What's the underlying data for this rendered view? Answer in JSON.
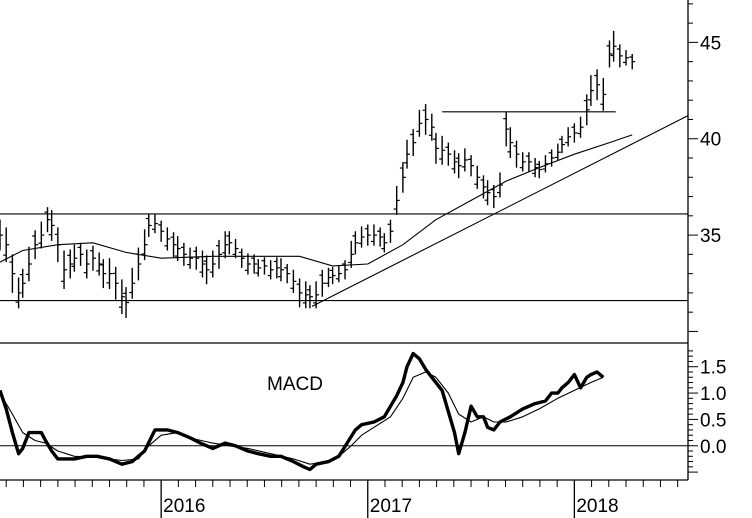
{
  "chart_data": [
    {
      "type": "ohlc",
      "panel": "price",
      "yticks": [
        "45",
        "40",
        "35"
      ],
      "ytick_values": [
        45,
        40,
        35
      ],
      "ylim": [
        29.4,
        47.2
      ],
      "xlim": [
        2015.22,
        2018.55
      ],
      "xticks": [
        "2016",
        "2017",
        "2018"
      ],
      "xtick_values": [
        2016.0,
        2017.0,
        2018.0
      ],
      "bars": [
        [
          2015.22,
          35,
          1.6
        ],
        [
          2015.25,
          34.5,
          1.8
        ],
        [
          2015.28,
          33,
          2
        ],
        [
          2015.31,
          32,
          1.6
        ],
        [
          2015.33,
          32.5,
          1.5
        ],
        [
          2015.36,
          33.5,
          1.8
        ],
        [
          2015.39,
          34.5,
          1.5
        ],
        [
          2015.42,
          35,
          1.4
        ],
        [
          2015.45,
          35.8,
          1.3
        ],
        [
          2015.47,
          35.5,
          1.6
        ],
        [
          2015.5,
          34.5,
          1.8
        ],
        [
          2015.53,
          33.2,
          2
        ],
        [
          2015.56,
          33.5,
          1.5
        ],
        [
          2015.58,
          33.8,
          1.4
        ],
        [
          2015.61,
          34,
          1.2
        ],
        [
          2015.64,
          33.5,
          1.5
        ],
        [
          2015.67,
          33.8,
          1.3
        ],
        [
          2015.7,
          33.5,
          1.2
        ],
        [
          2015.72,
          33,
          1.5
        ],
        [
          2015.75,
          33,
          1.6
        ],
        [
          2015.78,
          32.5,
          1.7
        ],
        [
          2015.81,
          31.8,
          1.8
        ],
        [
          2015.83,
          31.5,
          1.6
        ],
        [
          2015.86,
          32.5,
          1.6
        ],
        [
          2015.89,
          33.5,
          1.7
        ],
        [
          2015.92,
          34.5,
          1.6
        ],
        [
          2015.94,
          35.5,
          1.2
        ],
        [
          2015.97,
          35.6,
          1
        ],
        [
          2016.0,
          35.2,
          1.1
        ],
        [
          2016.03,
          34.8,
          1.2
        ],
        [
          2016.06,
          34.5,
          1.3
        ],
        [
          2016.08,
          34.3,
          1.3
        ],
        [
          2016.11,
          34,
          1.2
        ],
        [
          2016.14,
          33.8,
          1.1
        ],
        [
          2016.17,
          33.8,
          1.2
        ],
        [
          2016.2,
          33.5,
          1.4
        ],
        [
          2016.22,
          33.2,
          1.5
        ],
        [
          2016.25,
          33.5,
          1.4
        ],
        [
          2016.28,
          34,
          1.5
        ],
        [
          2016.31,
          34.5,
          1.4
        ],
        [
          2016.33,
          34.6,
          1.2
        ],
        [
          2016.36,
          34.3,
          1
        ],
        [
          2016.39,
          33.8,
          1
        ],
        [
          2016.42,
          33.5,
          1.1
        ],
        [
          2016.45,
          33.5,
          1
        ],
        [
          2016.47,
          33.3,
          0.9
        ],
        [
          2016.5,
          33.4,
          0.9
        ],
        [
          2016.53,
          33.2,
          1
        ],
        [
          2016.56,
          33.3,
          1.1
        ],
        [
          2016.58,
          33.2,
          1.2
        ],
        [
          2016.61,
          33,
          1
        ],
        [
          2016.64,
          32.6,
          1.2
        ],
        [
          2016.67,
          32,
          1.5
        ],
        [
          2016.7,
          31.9,
          1.4
        ],
        [
          2016.72,
          31.8,
          1.2
        ],
        [
          2016.75,
          31.9,
          1.4
        ],
        [
          2016.78,
          32.5,
          1.4
        ],
        [
          2016.81,
          32.8,
          1
        ],
        [
          2016.83,
          32.9,
          0.9
        ],
        [
          2016.86,
          33,
          0.9
        ],
        [
          2016.89,
          33.2,
          1
        ],
        [
          2016.92,
          34,
          1.4
        ],
        [
          2016.94,
          34.6,
          1.2
        ],
        [
          2016.97,
          34.9,
          1.1
        ],
        [
          2017.0,
          35,
          1.1
        ],
        [
          2017.03,
          35,
          1.1
        ],
        [
          2017.06,
          34.9,
          1
        ],
        [
          2017.08,
          34.6,
          1
        ],
        [
          2017.11,
          35.2,
          1.2
        ],
        [
          2017.14,
          36.8,
          1.5
        ],
        [
          2017.17,
          38,
          1.6
        ],
        [
          2017.19,
          39.2,
          1.5
        ],
        [
          2017.22,
          39.8,
          1.4
        ],
        [
          2017.25,
          40.8,
          1.4
        ],
        [
          2017.28,
          41,
          1.6
        ],
        [
          2017.31,
          40.6,
          1.4
        ],
        [
          2017.33,
          39.5,
          1.6
        ],
        [
          2017.36,
          39.4,
          1.5
        ],
        [
          2017.39,
          39.2,
          1.2
        ],
        [
          2017.42,
          38.8,
          1.2
        ],
        [
          2017.44,
          38.6,
          1.3
        ],
        [
          2017.47,
          38.9,
          1.2
        ],
        [
          2017.5,
          38.6,
          1.1
        ],
        [
          2017.53,
          38,
          1.2
        ],
        [
          2017.56,
          37.5,
          1.2
        ],
        [
          2017.58,
          37.2,
          1.3
        ],
        [
          2017.61,
          37,
          1.2
        ],
        [
          2017.64,
          37.6,
          1.3
        ],
        [
          2017.67,
          40.5,
          1.8
        ],
        [
          2017.69,
          39.8,
          1.6
        ],
        [
          2017.72,
          39.2,
          1.4
        ],
        [
          2017.75,
          38.8,
          1
        ],
        [
          2017.78,
          38.8,
          1
        ],
        [
          2017.81,
          38.5,
          1
        ],
        [
          2017.83,
          38.4,
          0.9
        ],
        [
          2017.86,
          38.7,
          0.9
        ],
        [
          2017.89,
          39,
          0.9
        ],
        [
          2017.92,
          39.3,
          0.9
        ],
        [
          2017.94,
          39.7,
          0.9
        ],
        [
          2017.97,
          40.1,
          1
        ],
        [
          2018.0,
          40.3,
          1
        ],
        [
          2018.03,
          40.6,
          1.1
        ],
        [
          2018.06,
          41.5,
          1.6
        ],
        [
          2018.08,
          42.5,
          1.6
        ],
        [
          2018.11,
          42.8,
          1.6
        ],
        [
          2018.14,
          42.3,
          1.7
        ],
        [
          2018.17,
          44.4,
          1.4
        ],
        [
          2018.19,
          44.8,
          1.6
        ],
        [
          2018.22,
          44.3,
          1.2
        ],
        [
          2018.25,
          44.2,
          0.8
        ],
        [
          2018.28,
          44,
          0.8
        ]
      ],
      "moving_average": [
        [
          2015.22,
          33.6
        ],
        [
          2015.33,
          34.2
        ],
        [
          2015.5,
          34.5
        ],
        [
          2015.67,
          34.6
        ],
        [
          2015.83,
          34.1
        ],
        [
          2016.0,
          33.8
        ],
        [
          2016.25,
          33.9
        ],
        [
          2016.5,
          33.9
        ],
        [
          2016.67,
          33.9
        ],
        [
          2016.83,
          33.4
        ],
        [
          2017.0,
          33.5
        ],
        [
          2017.17,
          34.5
        ],
        [
          2017.33,
          35.8
        ],
        [
          2017.5,
          36.8
        ],
        [
          2017.67,
          37.8
        ],
        [
          2017.83,
          38.5
        ],
        [
          2018.0,
          39.2
        ],
        [
          2018.17,
          39.8
        ],
        [
          2018.28,
          40.2
        ]
      ],
      "trendlines": [
        {
          "points": [
            [
              2015.22,
              36.1
            ],
            [
              2018.55,
              36.1
            ]
          ]
        },
        {
          "points": [
            [
              2015.22,
              31.6
            ],
            [
              2018.55,
              31.6
            ]
          ]
        },
        {
          "points": [
            [
              2017.36,
              41.4
            ],
            [
              2018.2,
              41.4
            ]
          ]
        },
        {
          "points": [
            [
              2016.73,
              31.3
            ],
            [
              2018.55,
              41.2
            ]
          ]
        }
      ]
    },
    {
      "type": "line",
      "panel": "indicator",
      "label": "MACD",
      "yticks": [
        "1.5",
        "1.0",
        "0.5",
        "0.0"
      ],
      "ytick_values": [
        1.5,
        1.0,
        0.5,
        0.0
      ],
      "ylim": [
        -0.65,
        1.95
      ],
      "zero_line": 0.0,
      "series": [
        {
          "role": "macd",
          "values": [
            [
              2015.22,
              1.05
            ],
            [
              2015.25,
              0.7
            ],
            [
              2015.28,
              0.25
            ],
            [
              2015.31,
              -0.15
            ],
            [
              2015.33,
              -0.05
            ],
            [
              2015.36,
              0.25
            ],
            [
              2015.39,
              0.25
            ],
            [
              2015.42,
              0.25
            ],
            [
              2015.44,
              0.1
            ],
            [
              2015.47,
              -0.1
            ],
            [
              2015.5,
              -0.25
            ],
            [
              2015.53,
              -0.25
            ],
            [
              2015.58,
              -0.25
            ],
            [
              2015.64,
              -0.2
            ],
            [
              2015.69,
              -0.2
            ],
            [
              2015.75,
              -0.25
            ],
            [
              2015.81,
              -0.35
            ],
            [
              2015.86,
              -0.3
            ],
            [
              2015.92,
              -0.1
            ],
            [
              2015.97,
              0.3
            ],
            [
              2016.03,
              0.3
            ],
            [
              2016.08,
              0.25
            ],
            [
              2016.14,
              0.15
            ],
            [
              2016.19,
              0.05
            ],
            [
              2016.25,
              -0.05
            ],
            [
              2016.31,
              0.05
            ],
            [
              2016.36,
              0.0
            ],
            [
              2016.42,
              -0.1
            ],
            [
              2016.47,
              -0.15
            ],
            [
              2016.53,
              -0.2
            ],
            [
              2016.58,
              -0.2
            ],
            [
              2016.64,
              -0.3
            ],
            [
              2016.69,
              -0.4
            ],
            [
              2016.72,
              -0.45
            ],
            [
              2016.75,
              -0.35
            ],
            [
              2016.81,
              -0.3
            ],
            [
              2016.86,
              -0.2
            ],
            [
              2016.9,
              0.05
            ],
            [
              2016.94,
              0.3
            ],
            [
              2016.97,
              0.4
            ],
            [
              2017.03,
              0.45
            ],
            [
              2017.08,
              0.55
            ],
            [
              2017.11,
              0.75
            ],
            [
              2017.14,
              0.95
            ],
            [
              2017.17,
              1.2
            ],
            [
              2017.19,
              1.5
            ],
            [
              2017.22,
              1.75
            ],
            [
              2017.25,
              1.65
            ],
            [
              2017.28,
              1.45
            ],
            [
              2017.31,
              1.3
            ],
            [
              2017.36,
              1.05
            ],
            [
              2017.39,
              0.65
            ],
            [
              2017.42,
              0.25
            ],
            [
              2017.44,
              -0.15
            ],
            [
              2017.47,
              0.25
            ],
            [
              2017.5,
              0.75
            ],
            [
              2017.53,
              0.55
            ],
            [
              2017.56,
              0.55
            ],
            [
              2017.58,
              0.35
            ],
            [
              2017.61,
              0.3
            ],
            [
              2017.64,
              0.45
            ],
            [
              2017.69,
              0.55
            ],
            [
              2017.75,
              0.7
            ],
            [
              2017.81,
              0.8
            ],
            [
              2017.86,
              0.85
            ],
            [
              2017.89,
              1.0
            ],
            [
              2017.92,
              1.0
            ],
            [
              2017.94,
              1.1
            ],
            [
              2017.97,
              1.2
            ],
            [
              2018.0,
              1.35
            ],
            [
              2018.03,
              1.1
            ],
            [
              2018.06,
              1.3
            ],
            [
              2018.08,
              1.35
            ],
            [
              2018.11,
              1.4
            ],
            [
              2018.14,
              1.3
            ]
          ]
        },
        {
          "role": "signal",
          "values": [
            [
              2015.22,
              1.0
            ],
            [
              2015.28,
              0.6
            ],
            [
              2015.33,
              0.25
            ],
            [
              2015.39,
              0.1
            ],
            [
              2015.44,
              0.05
            ],
            [
              2015.5,
              -0.1
            ],
            [
              2015.58,
              -0.2
            ],
            [
              2015.69,
              -0.22
            ],
            [
              2015.81,
              -0.28
            ],
            [
              2015.89,
              -0.25
            ],
            [
              2015.94,
              0.0
            ],
            [
              2016.0,
              0.2
            ],
            [
              2016.08,
              0.25
            ],
            [
              2016.17,
              0.12
            ],
            [
              2016.25,
              0.05
            ],
            [
              2016.33,
              0.0
            ],
            [
              2016.42,
              -0.05
            ],
            [
              2016.53,
              -0.15
            ],
            [
              2016.64,
              -0.25
            ],
            [
              2016.72,
              -0.35
            ],
            [
              2016.81,
              -0.3
            ],
            [
              2016.86,
              -0.2
            ],
            [
              2016.92,
              0.0
            ],
            [
              2016.97,
              0.2
            ],
            [
              2017.03,
              0.35
            ],
            [
              2017.11,
              0.55
            ],
            [
              2017.17,
              0.9
            ],
            [
              2017.22,
              1.3
            ],
            [
              2017.28,
              1.4
            ],
            [
              2017.33,
              1.3
            ],
            [
              2017.39,
              1.0
            ],
            [
              2017.44,
              0.6
            ],
            [
              2017.5,
              0.45
            ],
            [
              2017.56,
              0.55
            ],
            [
              2017.61,
              0.45
            ],
            [
              2017.67,
              0.45
            ],
            [
              2017.75,
              0.55
            ],
            [
              2017.83,
              0.7
            ],
            [
              2017.92,
              0.9
            ],
            [
              2018.0,
              1.05
            ],
            [
              2018.08,
              1.2
            ],
            [
              2018.14,
              1.3
            ]
          ]
        }
      ]
    }
  ]
}
